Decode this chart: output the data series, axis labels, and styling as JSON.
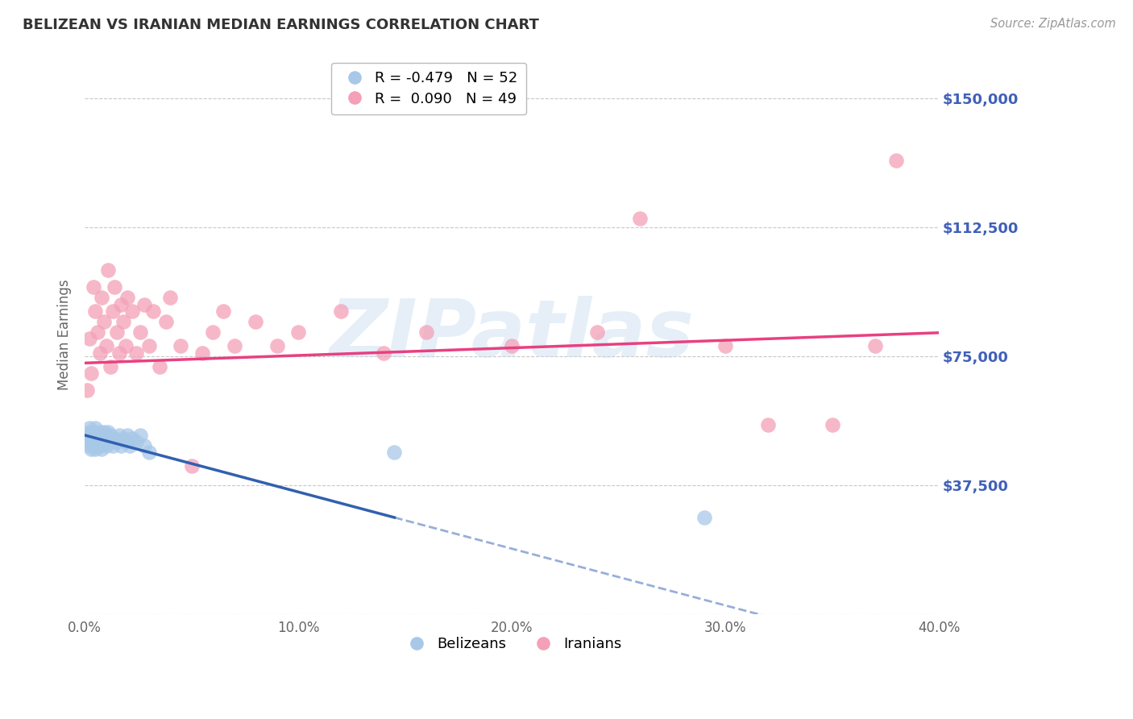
{
  "title": "BELIZEAN VS IRANIAN MEDIAN EARNINGS CORRELATION CHART",
  "source": "Source: ZipAtlas.com",
  "ylabel": "Median Earnings",
  "watermark": "ZIPatlas",
  "xlim": [
    0.0,
    0.4
  ],
  "ylim": [
    0,
    162500
  ],
  "yticks": [
    0,
    37500,
    75000,
    112500,
    150000
  ],
  "ytick_labels": [
    "",
    "$37,500",
    "$75,000",
    "$112,500",
    "$150,000"
  ],
  "xticks": [
    0.0,
    0.1,
    0.2,
    0.3,
    0.4
  ],
  "xtick_labels": [
    "0.0%",
    "10.0%",
    "20.0%",
    "30.0%",
    "40.0%"
  ],
  "grid_color": "#c8c8c8",
  "background_color": "#ffffff",
  "blue_scatter_color": "#a8c8e8",
  "pink_scatter_color": "#f4a0b8",
  "blue_line_color": "#3060b0",
  "pink_line_color": "#e84080",
  "legend_R_blue": "-0.479",
  "legend_N_blue": "52",
  "legend_R_pink": "0.090",
  "legend_N_pink": "49",
  "belizean_x": [
    0.001,
    0.001,
    0.002,
    0.002,
    0.002,
    0.003,
    0.003,
    0.003,
    0.003,
    0.004,
    0.004,
    0.004,
    0.004,
    0.005,
    0.005,
    0.005,
    0.005,
    0.006,
    0.006,
    0.006,
    0.006,
    0.007,
    0.007,
    0.007,
    0.008,
    0.008,
    0.008,
    0.009,
    0.009,
    0.01,
    0.01,
    0.01,
    0.011,
    0.011,
    0.012,
    0.012,
    0.013,
    0.014,
    0.015,
    0.016,
    0.017,
    0.018,
    0.019,
    0.02,
    0.021,
    0.022,
    0.024,
    0.026,
    0.028,
    0.03,
    0.145,
    0.29
  ],
  "belizean_y": [
    52000,
    50000,
    54000,
    49000,
    53000,
    51000,
    50000,
    48000,
    52000,
    53000,
    49000,
    51000,
    50000,
    52000,
    48000,
    50000,
    54000,
    51000,
    49000,
    52000,
    50000,
    53000,
    51000,
    49000,
    52000,
    50000,
    48000,
    51000,
    53000,
    52000,
    50000,
    49000,
    51000,
    53000,
    50000,
    52000,
    49000,
    51000,
    50000,
    52000,
    49000,
    51000,
    50000,
    52000,
    49000,
    51000,
    50000,
    52000,
    49000,
    47000,
    47000,
    28000
  ],
  "iranian_x": [
    0.001,
    0.002,
    0.003,
    0.004,
    0.005,
    0.006,
    0.007,
    0.008,
    0.009,
    0.01,
    0.011,
    0.012,
    0.013,
    0.014,
    0.015,
    0.016,
    0.017,
    0.018,
    0.019,
    0.02,
    0.022,
    0.024,
    0.026,
    0.028,
    0.03,
    0.032,
    0.035,
    0.038,
    0.04,
    0.045,
    0.05,
    0.055,
    0.06,
    0.065,
    0.07,
    0.08,
    0.09,
    0.1,
    0.12,
    0.14,
    0.16,
    0.2,
    0.24,
    0.26,
    0.3,
    0.32,
    0.35,
    0.37,
    0.38
  ],
  "iranian_y": [
    65000,
    80000,
    70000,
    95000,
    88000,
    82000,
    76000,
    92000,
    85000,
    78000,
    100000,
    72000,
    88000,
    95000,
    82000,
    76000,
    90000,
    85000,
    78000,
    92000,
    88000,
    76000,
    82000,
    90000,
    78000,
    88000,
    72000,
    85000,
    92000,
    78000,
    43000,
    76000,
    82000,
    88000,
    78000,
    85000,
    78000,
    82000,
    88000,
    76000,
    82000,
    78000,
    82000,
    115000,
    78000,
    55000,
    55000,
    78000,
    132000
  ],
  "bel_line_x_solid_end": 0.145,
  "iran_line_x_start": 0.0,
  "iran_line_x_end": 0.4,
  "bel_regression_intercept": 52000,
  "bel_regression_slope": -165000,
  "iran_regression_intercept": 73000,
  "iran_regression_slope": 22000
}
